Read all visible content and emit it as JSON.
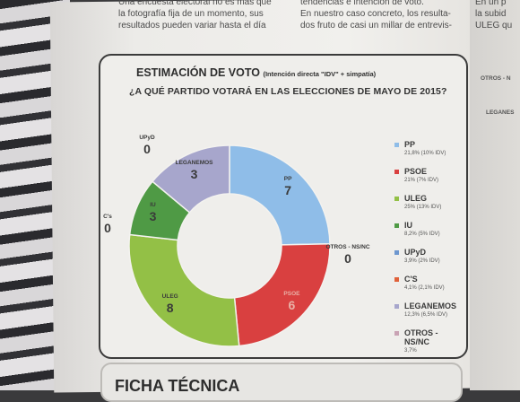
{
  "column_text": {
    "left": "Una encuesta electoral no es más que\nla fotografía fija de un momento, sus\nresultados pueden variar hasta el día",
    "middle": "tendencias e intención de voto.\nEn nuestro caso concreto, los resulta-\ndos fruto de casi un millar de entrevis-",
    "right": "En un p\nla subid\nULEG qu"
  },
  "box": {
    "title": "ESTIMACIÓN DE VOTO",
    "title_sub": "(Intención directa \"IDV\" + simpatía)",
    "question": "¿A QUÉ PARTIDO VOTARÁ EN LAS ELECCIONES DE MAYO DE 2015?"
  },
  "chart_data": {
    "type": "pie",
    "donut": true,
    "categories": [
      "PP",
      "PSOE",
      "ULEG",
      "IU",
      "UPyD",
      "C'S",
      "LEGANEMOS",
      "OTROS - NS/NC"
    ],
    "seats": [
      7,
      6,
      8,
      3,
      0,
      0,
      3,
      0
    ],
    "values": [
      21.8,
      21,
      25,
      8.2,
      3.9,
      4.1,
      12.3,
      3.7
    ],
    "idv": [
      10,
      7,
      13,
      5,
      2,
      2.1,
      6.5,
      null
    ],
    "seat_label_names": [
      "PP",
      "PSOE",
      "ULEG",
      "IU",
      "UPyD",
      "C's",
      "LEGANEMOS",
      "OTROS - NS/NC"
    ],
    "colors": [
      "#8fbde8",
      "#d94040",
      "#93c046",
      "#4f9a45",
      "#6e97cf",
      "#e0613a",
      "#a7a6cc",
      "#c9a3b4"
    ]
  },
  "legend": [
    {
      "name": "PP",
      "value": "21,8% (10% IDV)"
    },
    {
      "name": "PSOE",
      "value": "21% (7% IDV)"
    },
    {
      "name": "ULEG",
      "value": "25% (13% IDV)"
    },
    {
      "name": "IU",
      "value": "8,2% (5% IDV)"
    },
    {
      "name": "UPyD",
      "value": "3,9% (2% IDV)"
    },
    {
      "name": "C'S",
      "value": "4,1% (2,1% IDV)"
    },
    {
      "name": "LEGANEMOS",
      "value": "12,3% (6,5% IDV)"
    },
    {
      "name": "OTROS - NS/NC",
      "value": "3,7%"
    }
  ],
  "right_snippets": {
    "a": "OTROS - N",
    "b": "LEGANES"
  },
  "ficha": {
    "title": "FICHA TÉCNICA"
  }
}
